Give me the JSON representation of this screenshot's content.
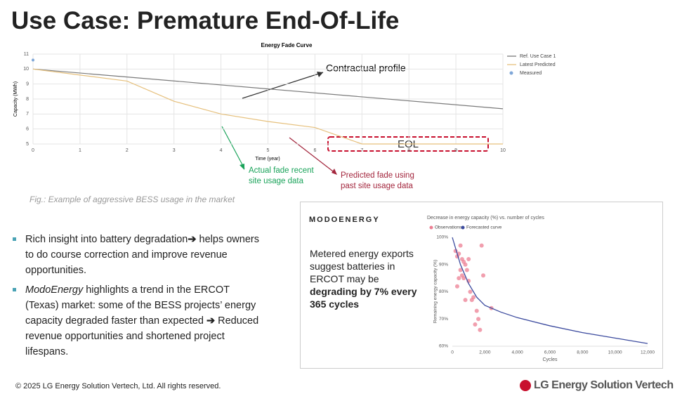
{
  "header": {
    "title": "Use Case: Premature End-Of-Life"
  },
  "chart_data": [
    {
      "type": "line",
      "title": "Energy Fade Curve",
      "x_label": "Time (year)",
      "y_label": "Capacity (MWh)",
      "xlim": [
        0,
        10
      ],
      "xticks": [
        0,
        1,
        2,
        3,
        4,
        5,
        6,
        7,
        8,
        9,
        10
      ],
      "ylim": [
        5,
        11
      ],
      "yticks": [
        5,
        6,
        7,
        8,
        9,
        10,
        11
      ],
      "grid": true,
      "series": [
        {
          "name": "Ref. Use Case 1",
          "color": "#7a7a7a",
          "style": "line",
          "x": [
            0,
            10
          ],
          "values": [
            10,
            7.35
          ]
        },
        {
          "name": "Latest Predicted",
          "color": "#e6c07c",
          "style": "line",
          "x": [
            0,
            1,
            2,
            3,
            4,
            5,
            6,
            7,
            8,
            9,
            10
          ],
          "values": [
            10,
            9.6,
            9.2,
            7.85,
            7.0,
            6.5,
            6.1,
            5.0,
            5.0,
            5.0,
            5.0
          ]
        },
        {
          "name": "Measured",
          "color": "#7fa7d8",
          "style": "markers",
          "x": [
            0
          ],
          "values": [
            10.6
          ]
        }
      ],
      "annotations": [
        "Contractual profile",
        "EOL",
        "Actual fade recent site usage data",
        "Predicted fade using past site usage data"
      ],
      "caption": "Fig.: Example of aggressive BESS usage in the market"
    },
    {
      "type": "scatter",
      "title": "Decrease in energy capacity (%) vs. number of cycles",
      "x_label": "Cycles",
      "y_label": "Remaining energy capacity (%)",
      "xlim": [
        0,
        12000
      ],
      "xticks": [
        0,
        {
          "value": 2000,
          "label": "2,000"
        },
        {
          "value": 4000,
          "label": "4,000"
        },
        {
          "value": 6000,
          "label": "6,000"
        },
        {
          "value": 8000,
          "label": "8,000"
        },
        {
          "value": 10000,
          "label": "10,000"
        },
        {
          "value": 12000,
          "label": "12,000"
        }
      ],
      "ylim": [
        60,
        100
      ],
      "yticks": [
        {
          "value": 60,
          "label": "60%"
        },
        {
          "value": 70,
          "label": "70%"
        },
        {
          "value": 80,
          "label": "80%"
        },
        {
          "value": 90,
          "label": "90%"
        },
        {
          "value": 100,
          "label": "100%"
        }
      ],
      "grid": false,
      "series": [
        {
          "name": "Observations",
          "color": "#ec7f93",
          "style": "markers",
          "x": [
            200,
            300,
            400,
            500,
            600,
            700,
            800,
            900,
            500,
            600,
            700,
            300,
            1000,
            1100,
            1200,
            1300,
            1500,
            1600,
            1400,
            1700,
            1800,
            1900,
            2400,
            800,
            1000,
            400
          ],
          "values": [
            95,
            93,
            94,
            97,
            92,
            91,
            90,
            88,
            88,
            86,
            85,
            82,
            84,
            80,
            77,
            78,
            73,
            70,
            68,
            66,
            97,
            86,
            74,
            77,
            92,
            85
          ]
        },
        {
          "name": "Forecasted curve",
          "color": "#3b4a9e",
          "style": "line",
          "x": [
            0,
            500,
            1000,
            1500,
            2000,
            3000,
            4000,
            6000,
            8000,
            10000,
            12000
          ],
          "values": [
            100,
            90,
            83,
            78,
            75,
            72.5,
            70.5,
            67.5,
            65,
            63,
            61
          ]
        }
      ]
    }
  ],
  "modo": {
    "logo": "MODOENERGY",
    "text": [
      "Metered energy exports suggest batteries in ERCOT may be ",
      "degrading by 7% every 365 cycles"
    ]
  },
  "bullets": [
    [
      "Rich insight into battery degradation",
      "➔",
      " helps owners to do course correction and improve revenue opportunities."
    ],
    [
      "ModoEnergy",
      " highlights a trend in the ERCOT (Texas) market: some of the BESS projects’ energy capacity degraded faster than expected ",
      "➔",
      " Reduced revenue opportunities and shortened project lifespans."
    ]
  ],
  "footer": {
    "copyright": "© 2025 LG Energy Solution Vertech, Ltd. All rights reserved.",
    "logo": "LG Energy Solution Vertech"
  }
}
